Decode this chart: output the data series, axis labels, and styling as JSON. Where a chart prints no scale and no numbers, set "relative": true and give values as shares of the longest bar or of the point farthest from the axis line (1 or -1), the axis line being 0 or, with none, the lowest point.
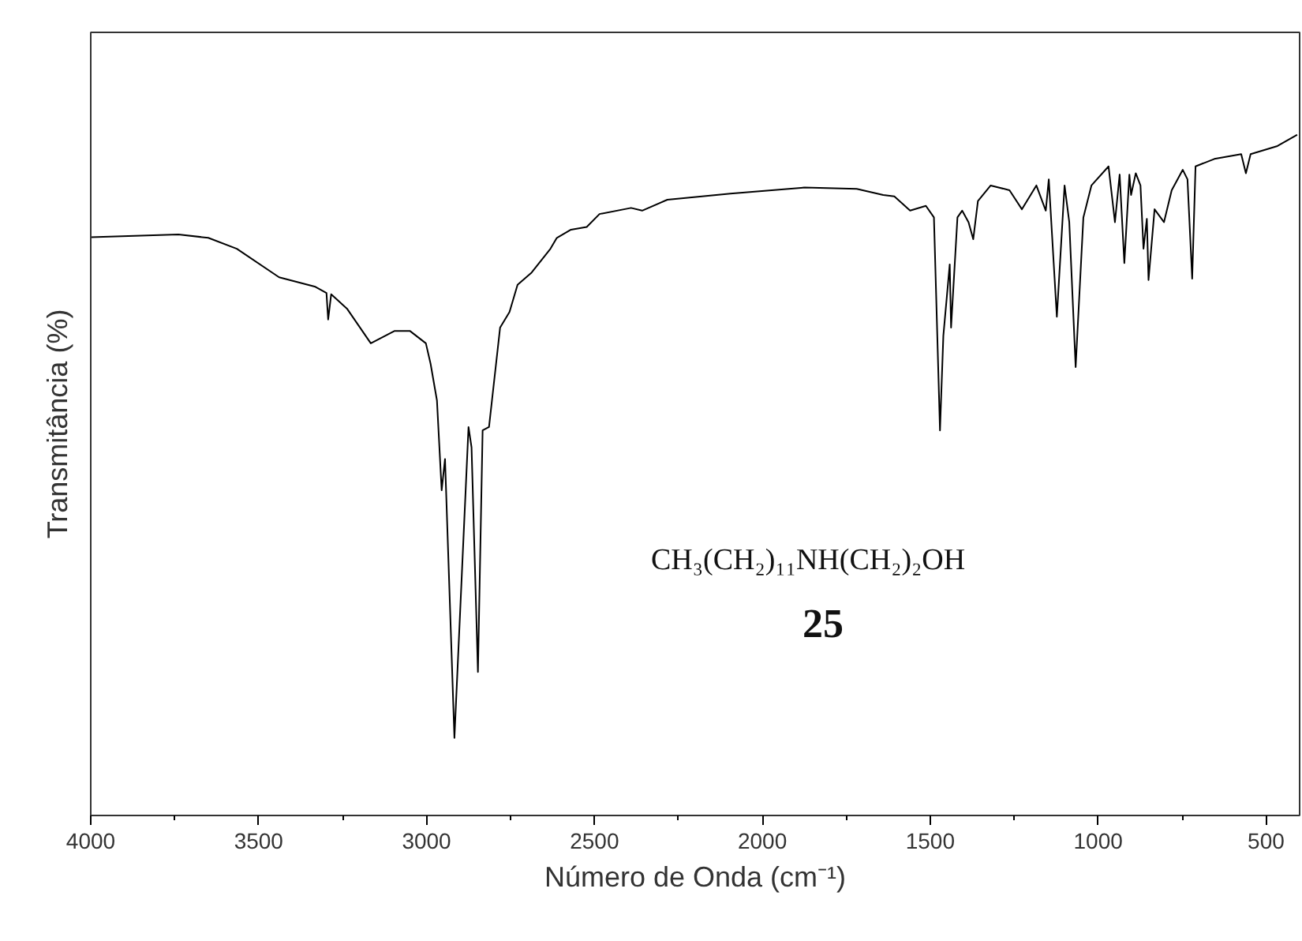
{
  "chart_data": {
    "type": "line",
    "relative": true,
    "xlabel": "Número de Onda (cm⁻¹)",
    "ylabel": "Transmitância (%)",
    "xlim": [
      4000,
      400
    ],
    "xticks": [
      4000,
      {
        "value": 3750,
        "label": null
      },
      3500,
      {
        "value": 3250,
        "label": null
      },
      3000,
      {
        "value": 2750,
        "label": null
      },
      2500,
      {
        "value": 2250,
        "label": null
      },
      2000,
      {
        "value": 1750,
        "label": null
      },
      1500,
      {
        "value": 1250,
        "label": null
      },
      1000,
      {
        "value": 750,
        "label": null
      },
      500
    ],
    "grid": false,
    "marker": "none",
    "line_style": "solid",
    "annotations": [
      "CH₃(CH₂)₁₁NH(CH₂)₂OH",
      "25"
    ],
    "series": [
      {
        "color": "#000000",
        "x": [
          4000,
          3739,
          3650,
          3565,
          3439,
          3331,
          3298,
          3293,
          3284,
          3237,
          3166,
          3096,
          3049,
          3002,
          2988,
          2969,
          2955,
          2945,
          2917,
          2875,
          2866,
          2847,
          2833,
          2814,
          2781,
          2753,
          2729,
          2687,
          2631,
          2612,
          2570,
          2523,
          2485,
          2391,
          2358,
          2283,
          2095,
          1874,
          1719,
          1640,
          1607,
          1560,
          1513,
          1489,
          1471,
          1461,
          1442,
          1438,
          1419,
          1405,
          1386,
          1372,
          1358,
          1320,
          1264,
          1227,
          1184,
          1156,
          1147,
          1123,
          1100,
          1086,
          1067,
          1044,
          1020,
          969,
          950,
          936,
          922,
          907,
          902,
          888,
          874,
          865,
          855,
          850,
          832,
          804,
          781,
          748,
          734,
          720,
          710,
          654,
          574,
          560,
          546,
          466,
          409
        ],
        "values": [
          0.85,
          0.854,
          0.849,
          0.833,
          0.791,
          0.777,
          0.768,
          0.729,
          0.766,
          0.745,
          0.694,
          0.712,
          0.712,
          0.694,
          0.664,
          0.61,
          0.478,
          0.524,
          0.114,
          0.571,
          0.541,
          0.211,
          0.566,
          0.571,
          0.717,
          0.74,
          0.78,
          0.798,
          0.833,
          0.849,
          0.861,
          0.865,
          0.884,
          0.893,
          0.889,
          0.905,
          0.914,
          0.923,
          0.921,
          0.912,
          0.91,
          0.889,
          0.896,
          0.879,
          0.566,
          0.705,
          0.81,
          0.717,
          0.879,
          0.889,
          0.872,
          0.847,
          0.903,
          0.926,
          0.919,
          0.891,
          0.926,
          0.889,
          0.935,
          0.733,
          0.926,
          0.872,
          0.659,
          0.879,
          0.926,
          0.954,
          0.872,
          0.942,
          0.812,
          0.942,
          0.912,
          0.944,
          0.926,
          0.833,
          0.877,
          0.787,
          0.891,
          0.872,
          0.919,
          0.949,
          0.935,
          0.789,
          0.954,
          0.965,
          0.972,
          0.944,
          0.972,
          0.984,
          1.0
        ]
      }
    ]
  }
}
